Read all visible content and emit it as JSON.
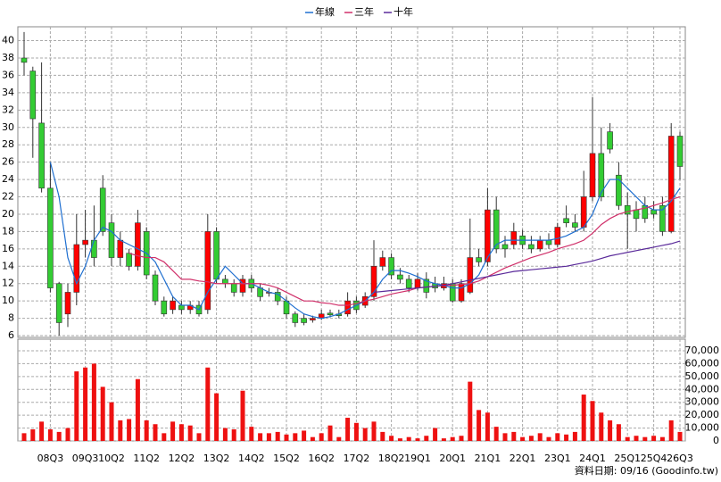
{
  "chart_data": {
    "type": "candlestick",
    "categories": [
      null,
      null,
      null,
      "08Q3",
      null,
      null,
      null,
      "09Q3",
      null,
      null,
      "10Q2",
      null,
      null,
      null,
      "11Q2",
      null,
      null,
      null,
      "12Q2",
      null,
      null,
      null,
      "13Q2",
      null,
      null,
      null,
      "14Q2",
      null,
      null,
      null,
      "15Q2",
      null,
      null,
      null,
      "16Q2",
      null,
      null,
      null,
      "17Q2",
      null,
      null,
      null,
      "18Q2",
      null,
      null,
      "19Q1",
      null,
      null,
      null,
      "20Q1",
      null,
      null,
      null,
      "21Q1",
      null,
      null,
      null,
      "22Q1",
      null,
      null,
      null,
      "23Q1",
      null,
      null,
      null,
      "24Q1",
      null,
      null,
      null,
      "25Q1",
      null,
      null,
      "25Q4",
      null,
      null,
      "26Q3"
    ],
    "open": [
      38,
      36.5,
      30.5,
      23,
      12,
      8.5,
      11,
      16.5,
      17,
      23,
      19,
      15,
      15.5,
      14,
      18,
      13,
      10,
      9,
      9.5,
      9,
      9.5,
      9,
      18,
      12.5,
      12,
      11,
      12.5,
      11.5,
      11,
      11,
      10,
      8.5,
      8,
      7.8,
      8,
      8.6,
      8.5,
      8.5,
      10,
      9.5,
      10.5,
      14,
      15,
      13,
      12.5,
      11.5,
      12.5,
      12,
      11.5,
      12,
      10,
      11,
      15,
      14.5,
      20.5,
      16.5,
      16.5,
      17.5,
      16.5,
      16,
      17,
      16.5,
      19.5,
      19,
      18.5,
      22,
      27,
      29.5,
      24.5,
      21,
      20.5,
      21,
      20.5,
      21,
      18,
      29
    ],
    "high": [
      41,
      37,
      37.5,
      26,
      12.2,
      12,
      20,
      20.5,
      21,
      24.5,
      20,
      18,
      16,
      20.5,
      18.5,
      13.5,
      10.5,
      10.5,
      10,
      10,
      10,
      20,
      18.5,
      13,
      12.5,
      13,
      13,
      12,
      11.5,
      11.5,
      10.5,
      8.8,
      8.5,
      8.3,
      9,
      9,
      9,
      11,
      10.5,
      11,
      17,
      15.8,
      15.5,
      13.8,
      13,
      13.2,
      13.3,
      12.8,
      12.8,
      12.5,
      12.5,
      19.5,
      16,
      23,
      22,
      17.5,
      19,
      18.2,
      17.5,
      17.5,
      17.8,
      19,
      21,
      20,
      25,
      33.5,
      30,
      30.5,
      26,
      22.5,
      21.5,
      22,
      21.5,
      22,
      30.5,
      29.5
    ],
    "low": [
      36,
      26.5,
      22.5,
      11,
      6,
      7,
      9.5,
      15,
      14,
      17.5,
      14,
      14,
      13.5,
      13.5,
      12.5,
      9.5,
      8.2,
      8.5,
      8.5,
      8.5,
      8.2,
      8.5,
      12,
      11.5,
      10.5,
      10.5,
      11,
      10,
      10.5,
      9.5,
      8,
      7,
      7.2,
      7.5,
      7.8,
      8.1,
      8,
      8.2,
      8.6,
      9.2,
      10,
      13.5,
      12.5,
      12,
      11,
      11.2,
      10.3,
      11,
      11.2,
      9.8,
      9.8,
      10.8,
      14,
      14,
      15.5,
      15,
      16,
      16,
      15.5,
      15.7,
      16,
      16.2,
      18.5,
      18,
      18,
      21.5,
      21.5,
      27,
      20.5,
      16,
      18,
      19,
      19.5,
      17.5,
      17.8,
      24
    ],
    "close": [
      37.5,
      31,
      23,
      11.5,
      7.5,
      11,
      16.5,
      17,
      15,
      18,
      15,
      17,
      14,
      19,
      13,
      10,
      8.5,
      10,
      9,
      9.5,
      8.5,
      18,
      12.5,
      12,
      11,
      12.5,
      11.5,
      10.5,
      11,
      10,
      8.5,
      7.5,
      7.5,
      8,
      8.5,
      8.4,
      8.3,
      10,
      9,
      10.5,
      14,
      15,
      13,
      12.5,
      11.5,
      12.5,
      11,
      11.5,
      12,
      10,
      12,
      15,
      14.5,
      20.5,
      16,
      16,
      18,
      16.5,
      16,
      17,
      16.5,
      18.5,
      19,
      18.5,
      22,
      27,
      22,
      27.5,
      21,
      20,
      19.5,
      19.5,
      20,
      18,
      29,
      25.5
    ],
    "up_color": "#ff0000",
    "down_color": "#33cc33",
    "series": [
      {
        "name": "年線",
        "color": "#1f6fd0",
        "values": [
          null,
          null,
          null,
          26,
          22,
          15,
          12,
          14,
          17,
          18.5,
          18,
          17,
          16.5,
          16,
          15.5,
          14.5,
          12.5,
          10.5,
          9.5,
          9.5,
          9,
          11,
          12.5,
          14,
          13,
          12,
          12,
          11.5,
          11,
          10.8,
          10,
          9.2,
          8.5,
          8.2,
          8,
          8.2,
          8.5,
          9,
          9.5,
          10,
          11,
          12.5,
          13.5,
          13.5,
          13.2,
          12.8,
          12.3,
          12,
          11.8,
          11.5,
          11.5,
          12,
          13,
          15,
          16.5,
          17,
          17,
          17,
          17,
          17,
          17,
          17.2,
          17.5,
          18,
          18.5,
          20,
          22.5,
          24,
          24,
          23,
          22,
          21,
          20.5,
          20.5,
          21.5,
          23
        ]
      },
      {
        "name": "三年",
        "color": "#d0306a",
        "values": [
          null,
          null,
          null,
          null,
          null,
          null,
          null,
          null,
          null,
          null,
          null,
          null,
          15.5,
          15.2,
          15,
          15,
          14.5,
          13.5,
          12.5,
          12.5,
          12.3,
          12.2,
          12,
          12,
          12,
          12,
          12,
          12,
          11.8,
          11.5,
          11,
          10.5,
          10,
          10,
          9.8,
          9.7,
          9.5,
          9.5,
          9.7,
          10,
          10.2,
          10.5,
          10.8,
          11,
          11.2,
          11.5,
          11.6,
          11.7,
          11.8,
          11.8,
          11.9,
          12,
          12.3,
          12.8,
          13.3,
          13.8,
          14.2,
          14.6,
          15,
          15.3,
          15.6,
          16,
          16.3,
          16.6,
          17,
          17.8,
          18.8,
          19.5,
          20,
          20.3,
          20.5,
          20.7,
          21,
          21.3,
          21.7,
          22
        ]
      },
      {
        "name": "十年",
        "color": "#5a2a9a",
        "values": [
          null,
          null,
          null,
          null,
          null,
          null,
          null,
          null,
          null,
          null,
          null,
          null,
          null,
          null,
          null,
          null,
          null,
          null,
          null,
          null,
          null,
          null,
          null,
          null,
          null,
          null,
          null,
          null,
          null,
          null,
          null,
          null,
          null,
          null,
          null,
          null,
          null,
          null,
          null,
          null,
          11,
          11.1,
          11.2,
          11.3,
          11.4,
          11.5,
          11.6,
          11.7,
          11.8,
          12,
          12.2,
          12.4,
          12.6,
          12.8,
          13,
          13.2,
          13.4,
          13.5,
          13.6,
          13.7,
          13.8,
          13.9,
          14,
          14.2,
          14.4,
          14.6,
          14.9,
          15.2,
          15.4,
          15.6,
          15.8,
          16,
          16.2,
          16.4,
          16.6,
          16.9
        ]
      }
    ],
    "ylim": [
      5.8,
      41.6
    ],
    "yticks": [
      6,
      8,
      10,
      12,
      14,
      16,
      18,
      20,
      22,
      24,
      26,
      28,
      30,
      32,
      34,
      36,
      38,
      40
    ],
    "volume": {
      "color": "#ee1111",
      "values": [
        6000,
        9000,
        15000,
        9000,
        7000,
        10000,
        54000,
        57000,
        60000,
        42000,
        30000,
        16000,
        17000,
        48000,
        16000,
        13000,
        6000,
        15000,
        13000,
        12000,
        6000,
        57000,
        37000,
        10000,
        9000,
        39000,
        11000,
        6000,
        6000,
        7000,
        5000,
        6000,
        8000,
        3000,
        6000,
        12000,
        3000,
        18000,
        14000,
        10000,
        15000,
        7000,
        4000,
        2000,
        3000,
        2000,
        4000,
        10000,
        2000,
        3000,
        4000,
        46000,
        24000,
        22000,
        11000,
        6000,
        7000,
        3000,
        4000,
        6000,
        3000,
        6000,
        5000,
        7000,
        36000,
        31000,
        22000,
        16000,
        13000,
        3000,
        4000,
        3000,
        4000,
        3000,
        16000,
        7000
      ],
      "ylim": [
        0,
        79000
      ],
      "yticks": [
        0,
        {
          "value": 10000,
          "label": "10,000"
        },
        {
          "value": 20000,
          "label": "20,000"
        },
        {
          "value": 30000,
          "label": "30,000"
        },
        {
          "value": 40000,
          "label": "40,000"
        },
        {
          "value": 50000,
          "label": "50,000"
        },
        {
          "value": 60000,
          "label": "60,000"
        },
        {
          "value": 70000,
          "label": "70,000"
        }
      ]
    },
    "grid": true,
    "footnote": "資料日期: 09/16  (Goodinfo.tw)"
  }
}
